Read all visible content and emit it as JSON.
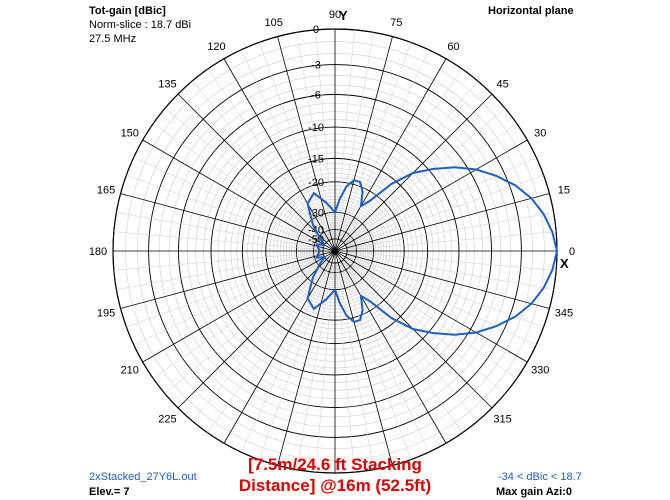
{
  "header": {
    "title": "Tot-gain [dBic]",
    "norm": "Norm-slice : 18.7 dBi",
    "freq": "27.5 MHz",
    "plane": "Horizontal plane"
  },
  "footer": {
    "filename": "2xStacked_27Y6L.out",
    "elev": "Elev.= 7",
    "range": "-34 < dBic < 18.7",
    "maxgain": "Max gain Azi:0",
    "caption_line1": "[7.5m/24.6 ft Stacking",
    "caption_line2": "Distance] @16m (52.5ft)",
    "colors": {
      "caption": "#d40000",
      "trace": "#1f5fbf",
      "footer_left": "#1f5fbf"
    }
  },
  "axis_markers": {
    "y": "Y",
    "x": "X"
  },
  "chart_data": {
    "type": "polar",
    "angle_ticks": [
      "0",
      "15",
      "30",
      "45",
      "60",
      "75",
      "90",
      "105",
      "120",
      "135",
      "150",
      "165",
      "180",
      "195",
      "210",
      "225",
      "315",
      "330",
      "345"
    ],
    "radial_ticks": [
      "0",
      "-3",
      "-6",
      "-10",
      "-15",
      "-20",
      "-30",
      "-40",
      "-50"
    ],
    "series": [
      {
        "azimuth_deg": [
          0,
          5,
          10,
          15,
          20,
          25,
          30,
          35,
          40,
          45,
          50,
          55,
          60,
          65,
          70,
          75,
          80,
          85,
          90,
          100,
          110,
          120,
          130,
          140,
          150,
          160,
          170,
          180,
          190,
          200,
          210,
          220,
          230,
          240,
          250,
          260,
          270,
          275,
          280,
          285,
          290,
          295,
          300,
          305,
          310,
          315,
          320,
          325,
          330,
          335,
          340,
          345,
          350,
          355,
          360
        ],
        "gain_db": [
          0,
          -0.3,
          -0.8,
          -1.5,
          -2.5,
          -3.8,
          -5.3,
          -7.2,
          -9.5,
          -12,
          -16,
          -22,
          -25,
          -21,
          -19,
          -19,
          -21,
          -25,
          -30,
          -26,
          -22,
          -24,
          -32,
          -42,
          -50,
          -42,
          -44,
          -46,
          -44,
          -42,
          -50,
          -42,
          -32,
          -24,
          -22,
          -26,
          -30,
          -25,
          -21,
          -19,
          -19,
          -21,
          -25,
          -22,
          -16,
          -12,
          -9.5,
          -7.2,
          -5.3,
          -3.8,
          -2.5,
          -1.5,
          -0.8,
          -0.3,
          0
        ]
      }
    ]
  }
}
